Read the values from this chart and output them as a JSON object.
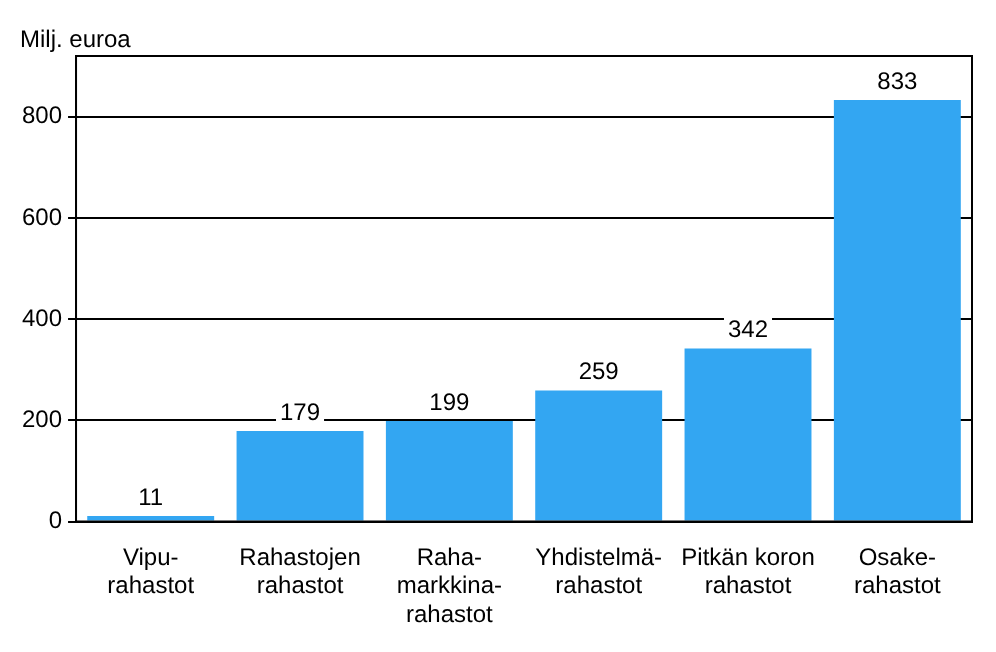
{
  "chart_data": {
    "type": "bar",
    "ylabel": "Milj. euroa",
    "categories": [
      "Vipu-\nrahastot",
      "Rahastojen\nrahastot",
      "Raha-\nmarkkina-\nrahastot",
      "Yhdistelmä-\nrahastot",
      "Pitkän koron\nrahastot",
      "Osake-\nrahastot"
    ],
    "values": [
      11,
      179,
      199,
      259,
      342,
      833
    ],
    "color": "#33a6f2",
    "ylim": [
      0,
      920
    ],
    "yticks": [
      0,
      200,
      400,
      600,
      800
    ],
    "grid": "y",
    "data_labels": true
  }
}
